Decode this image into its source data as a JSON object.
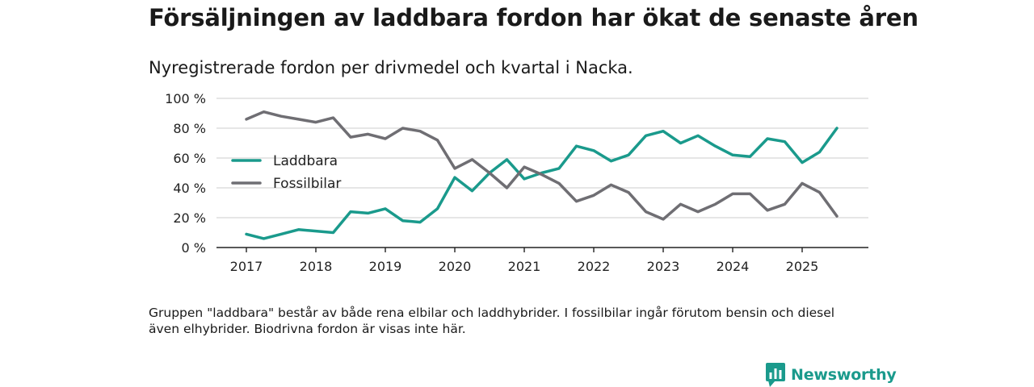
{
  "title": "Försäljningen av laddbara fordon har ökat de senaste åren",
  "subtitle": "Nyregistrerade fordon per drivmedel och kvartal i Nacka.",
  "footnote": "Gruppen \"laddbara\" består av både rena elbilar och laddhybrider. I fossilbilar ingår förutom bensin och diesel även elhybrider. Biodrivna fordon är visas inte här.",
  "brand": {
    "name": "Newsworthy",
    "icon": "newsworthy-logo-icon"
  },
  "colors": {
    "laddbara": "#1a9a8c",
    "fossil": "#6f6e73",
    "grid": "#d7d7d7",
    "axis": "#222222",
    "brand": "#1a9a8c"
  },
  "chart_data": {
    "type": "line",
    "title": "Försäljningen av laddbara fordon har ökat de senaste åren",
    "xlabel": "",
    "ylabel": "",
    "ylim": [
      0,
      100
    ],
    "yticks": [
      0,
      20,
      40,
      60,
      80,
      100
    ],
    "ytick_labels": [
      "0 %",
      "20 %",
      "40 %",
      "60 %",
      "80 %",
      "100 %"
    ],
    "xticks": [
      "2017",
      "2018",
      "2019",
      "2020",
      "2021",
      "2022",
      "2023",
      "2024",
      "2025"
    ],
    "x_start_year": 2017,
    "periods_per_year": 4,
    "grid": true,
    "legend": "left-middle",
    "series": [
      {
        "name": "Laddbara",
        "color": "#1a9a8c",
        "values": [
          9,
          6,
          9,
          12,
          11,
          10,
          24,
          23,
          26,
          18,
          17,
          26,
          47,
          38,
          50,
          59,
          46,
          50,
          53,
          68,
          65,
          58,
          62,
          75,
          78,
          70,
          75,
          68,
          62,
          61,
          73,
          71,
          57,
          64,
          80
        ]
      },
      {
        "name": "Fossilbilar",
        "color": "#6f6e73",
        "values": [
          86,
          91,
          88,
          86,
          84,
          87,
          74,
          76,
          73,
          80,
          78,
          72,
          53,
          59,
          50,
          40,
          54,
          49,
          43,
          31,
          35,
          42,
          37,
          24,
          19,
          29,
          24,
          29,
          36,
          36,
          25,
          29,
          43,
          37,
          21
        ]
      }
    ]
  }
}
